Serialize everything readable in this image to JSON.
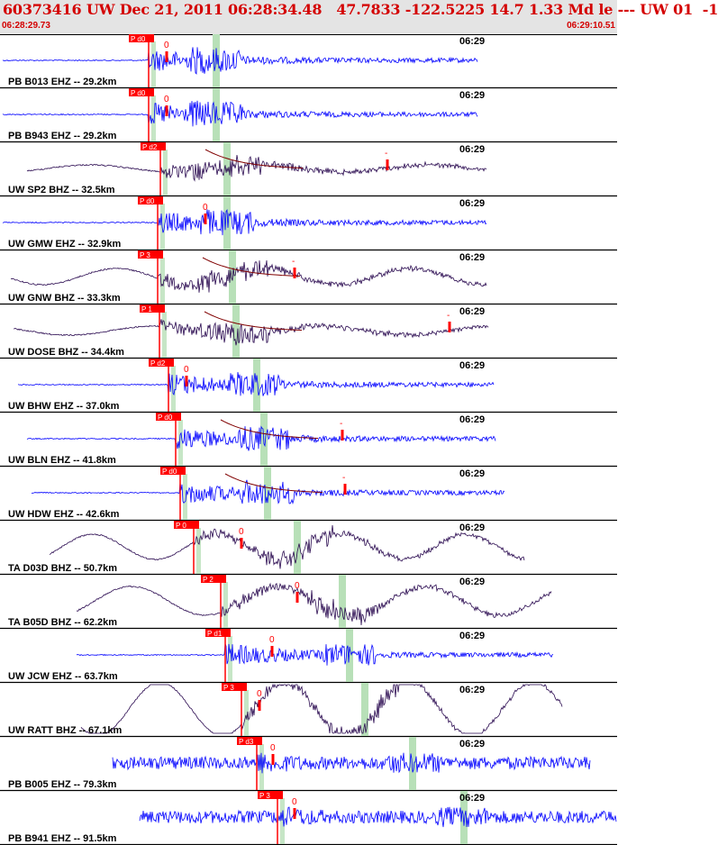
{
  "header": {
    "title": "60373416 UW Dec 21, 2011 06:28:34.48   47.7833 -122.5225 14.7 1.33 Md le --- UW 01  -1",
    "start_time": "06:28:29.73",
    "end_time": "06:29:10.51"
  },
  "colors": {
    "header_text": "#d40000",
    "header_bg": "#e4e4e4",
    "ehz_trace": "#0000ff",
    "bhz_trace": "#2a0a50",
    "pick_box": "#ff0000",
    "phase_band": "#b8e0b8",
    "decay_curve": "#800000"
  },
  "panels": [
    {
      "label": "PB B013 EHZ -- 29.2km",
      "time": "06:29",
      "pick": "P d0",
      "zero": "0",
      "type": "EHZ"
    },
    {
      "label": "PB B943 EHZ -- 29.2km",
      "time": "06:29",
      "pick": "P d0",
      "zero": "0",
      "type": "EHZ"
    },
    {
      "label": "UW SP2 BHZ -- 32.5km",
      "time": "06:29",
      "pick": "P d2",
      "zero": "-",
      "type": "BHZ"
    },
    {
      "label": "UW GMW EHZ -- 32.9km",
      "time": "06:29",
      "pick": "P d0",
      "zero": "0",
      "type": "EHZ"
    },
    {
      "label": "UW GNW BHZ -- 33.3km",
      "time": "06:29",
      "pick": "P 3",
      "zero": "-",
      "type": "BHZ"
    },
    {
      "label": "UW DOSE BHZ -- 34.4km",
      "time": "06:29",
      "pick": "P 1",
      "zero": "-",
      "type": "BHZ"
    },
    {
      "label": "UW BHW EHZ -- 37.0km",
      "time": "06:29",
      "pick": "P d2",
      "zero": "0",
      "type": "EHZ"
    },
    {
      "label": "UW BLN EHZ -- 41.8km",
      "time": "06:29",
      "pick": "P d0",
      "zero": "-",
      "type": "EHZ"
    },
    {
      "label": "UW HDW EHZ -- 42.6km",
      "time": "06:29",
      "pick": "P d0",
      "zero": "-",
      "type": "EHZ"
    },
    {
      "label": "TA D03D BHZ -- 50.7km",
      "time": "06:29",
      "pick": "P 0",
      "zero": "0",
      "type": "BHZ"
    },
    {
      "label": "TA B05D BHZ -- 62.2km",
      "time": "06:29",
      "pick": "P 2",
      "zero": "0",
      "type": "BHZ"
    },
    {
      "label": "UW JCW EHZ -- 63.7km",
      "time": "06:29",
      "pick": "P d1",
      "zero": "0",
      "type": "EHZ"
    },
    {
      "label": "UW RATT BHZ -- 67.1km",
      "time": "06:29",
      "pick": "P 3",
      "zero": "0",
      "type": "BHZ"
    },
    {
      "label": "PB B005 EHZ -- 79.3km",
      "time": "06:29",
      "pick": "P d3",
      "zero": "0",
      "type": "EHZ"
    },
    {
      "label": "PB B941 EHZ -- 91.5km",
      "time": "06:29",
      "pick": "P 3",
      "zero": "0",
      "type": "EHZ"
    }
  ]
}
